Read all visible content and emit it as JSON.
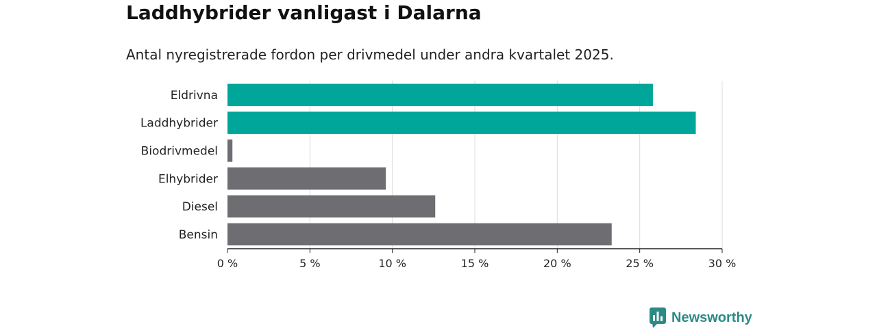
{
  "header": {
    "title": "Laddhybrider vanligast i Dalarna",
    "subtitle": "Antal nyregistrerade fordon per drivmedel under andra kvartalet 2025."
  },
  "colors": {
    "highlight": "#00a699",
    "default": "#6e6d72",
    "grid": "#dcdcdc",
    "axis": "#222222",
    "brand": "#2a8a86"
  },
  "chart_data": {
    "type": "bar",
    "orientation": "horizontal",
    "title": "Laddhybrider vanligast i Dalarna",
    "subtitle": "Antal nyregistrerade fordon per drivmedel under andra kvartalet 2025.",
    "categories": [
      "Eldrivna",
      "Laddhybrider",
      "Biodrivmedel",
      "Elhybrider",
      "Diesel",
      "Bensin"
    ],
    "values": [
      25.8,
      28.4,
      0.3,
      9.6,
      12.6,
      23.3
    ],
    "highlighted": [
      true,
      true,
      false,
      false,
      false,
      false
    ],
    "xlim": [
      0,
      30
    ],
    "xticks": [
      0,
      5,
      10,
      15,
      20,
      25,
      30
    ],
    "xtick_labels": [
      "0 %",
      "5 %",
      "10 %",
      "15 %",
      "20 %",
      "25 %",
      "30 %"
    ],
    "xlabel": "",
    "ylabel": "",
    "grid": true,
    "legend": "none"
  },
  "brand": {
    "name": "Newsworthy",
    "icon": "newsworthy-logo-icon"
  }
}
